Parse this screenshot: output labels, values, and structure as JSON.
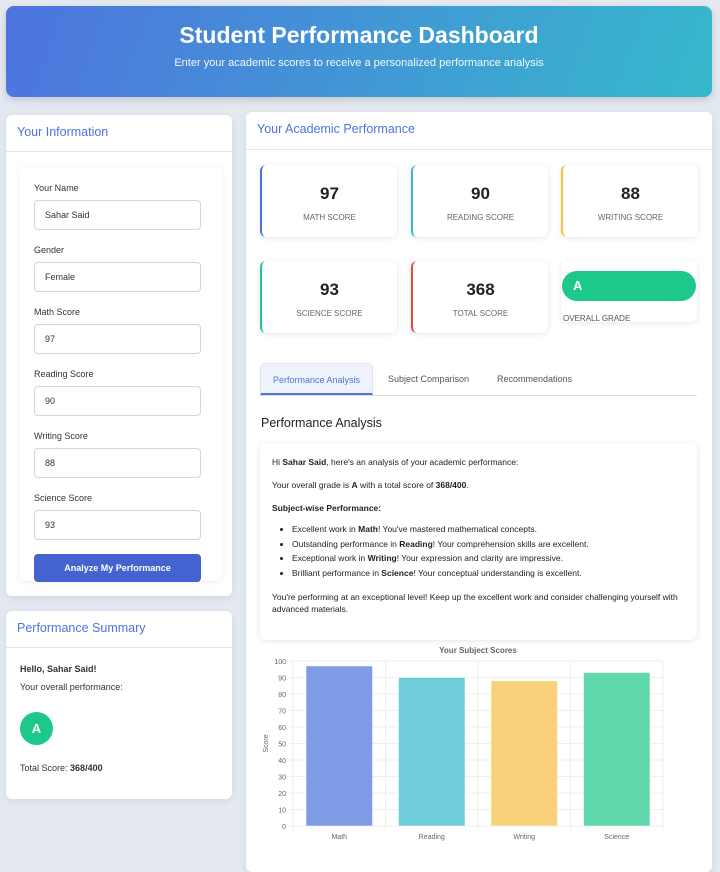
{
  "header": {
    "title": "Student Performance Dashboard",
    "subtitle": "Enter your academic scores to receive a personalized performance analysis"
  },
  "form": {
    "title": "Your Information",
    "fields": [
      {
        "label": "Your Name",
        "value": "Sahar Said"
      },
      {
        "label": "Gender",
        "value": "Female"
      },
      {
        "label": "Math Score",
        "value": "97"
      },
      {
        "label": "Reading Score",
        "value": "90"
      },
      {
        "label": "Writing Score",
        "value": "88"
      },
      {
        "label": "Science Score",
        "value": "93"
      }
    ],
    "button": "Analyze My Performance"
  },
  "summary": {
    "title": "Performance Summary",
    "hello": "Hello, Sahar Said!",
    "overall": "Your overall performance:",
    "grade": "A",
    "total_label": "Total Score:",
    "total_value": "368/400"
  },
  "performance": {
    "title": "Your Academic Performance",
    "stats": [
      {
        "value": "97",
        "label": "Math Score",
        "color": "#4e73df"
      },
      {
        "value": "90",
        "label": "Reading Score",
        "color": "#36b9cc"
      },
      {
        "value": "88",
        "label": "Writing Score",
        "color": "#f6c23e"
      },
      {
        "value": "93",
        "label": "Science Score",
        "color": "#1cc88a"
      },
      {
        "value": "368",
        "label": "Total Score",
        "color": "#e74a3b"
      }
    ],
    "grade": {
      "value": "A",
      "label": "Overall Grade"
    },
    "tabs": [
      "Performance Analysis",
      "Subject Comparison",
      "Recommendations"
    ],
    "analysis": {
      "title": "Performance Analysis",
      "greet": [
        "Hi ",
        "Sahar Said",
        ", here's an analysis of your academic performance:"
      ],
      "grade_line": [
        "Your overall grade is ",
        "A",
        " with a total score of ",
        "368/400",
        "."
      ],
      "subject_heading": "Subject-wise Performance:",
      "items": [
        [
          "Excellent work in ",
          "Math",
          "! You've mastered mathematical concepts."
        ],
        [
          "Outstanding performance in ",
          "Reading",
          "! Your comprehension skills are excellent."
        ],
        [
          "Exceptional work in ",
          "Writing",
          "! Your expression and clarity are impressive."
        ],
        [
          "Brilliant performance in ",
          "Science",
          "! Your conceptual understanding is excellent."
        ]
      ],
      "closing": "You're performing at an exceptional level! Keep up the excellent work and consider challenging yourself with advanced materials."
    }
  },
  "chart_data": {
    "type": "bar",
    "title": "Your Subject Scores",
    "xlabel": "",
    "ylabel": "Score",
    "categories": [
      "Math",
      "Reading",
      "Writing",
      "Science"
    ],
    "values": [
      97,
      90,
      88,
      93
    ],
    "ylim": [
      0,
      100
    ],
    "yticks": [
      0,
      10,
      20,
      30,
      40,
      50,
      60,
      70,
      80,
      90,
      100
    ],
    "grid": true,
    "colors": [
      "#7f9be6",
      "#6fcdd9",
      "#f7d27a",
      "#5fd8ab"
    ]
  }
}
